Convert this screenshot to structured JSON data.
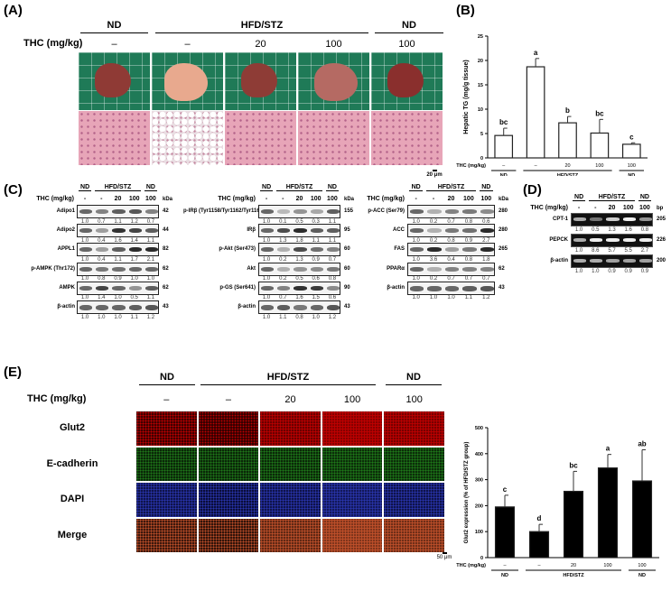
{
  "panels": {
    "a": "(A)",
    "b": "(B)",
    "c": "(C)",
    "d": "(D)",
    "e": "(E)"
  },
  "groups": [
    "ND",
    "HFD/STZ",
    "ND"
  ],
  "thc_label": "THC (mg/kg)",
  "doses": [
    "–",
    "–",
    "20",
    "100",
    "100"
  ],
  "doses_blot": [
    "-",
    "-",
    "20",
    "100",
    "100"
  ],
  "panel_a": {
    "scale_bar": "20 μm",
    "liver_colors": [
      "#8f3a35",
      "#e8a98e",
      "#8e3c36",
      "#b56a63",
      "#8a2f2d"
    ]
  },
  "panel_c": {
    "unit": "kDa",
    "blots": [
      {
        "rows": [
          {
            "label": "Adipo1",
            "kda": "42",
            "values": [
              "1.0",
              "0.7",
              "1.1",
              "1.2",
              "0.7"
            ]
          },
          {
            "label": "Adipo2",
            "kda": "44",
            "values": [
              "1.0",
              "0.4",
              "1.6",
              "1.4",
              "1.1"
            ]
          },
          {
            "label": "APPL1",
            "kda": "82",
            "values": [
              "1.0",
              "0.4",
              "1.1",
              "1.7",
              "2.1"
            ]
          },
          {
            "label": "p-AMPK (Thr172)",
            "kda": "62",
            "values": [
              "1.0",
              "0.8",
              "0.9",
              "1.0",
              "1.0"
            ]
          },
          {
            "label": "AMPK",
            "kda": "62",
            "values": [
              "1.0",
              "1.4",
              "1.0",
              "0.5",
              "1.1"
            ]
          },
          {
            "label": "β-actin",
            "kda": "43",
            "values": [
              "1.0",
              "1.0",
              "1.0",
              "1.1",
              "1.2"
            ]
          }
        ]
      },
      {
        "rows": [
          {
            "label": "p-IRβ (Tyr1158/Tyr1162/Tyr1163)",
            "kda": "155",
            "values": [
              "1.0",
              "0.1",
              "0.5",
              "0.3",
              "1.1"
            ]
          },
          {
            "label": "IRβ",
            "kda": "95",
            "values": [
              "1.0",
              "1.3",
              "1.8",
              "1.1",
              "1.1"
            ]
          },
          {
            "label": "p-Akt (Ser473)",
            "kda": "60",
            "values": [
              "1.0",
              "0.2",
              "1.3",
              "0.9",
              "0.7"
            ]
          },
          {
            "label": "Akt",
            "kda": "60",
            "values": [
              "1.0",
              "0.2",
              "0.5",
              "0.6",
              "0.8"
            ]
          },
          {
            "label": "p-GS (Ser641)",
            "kda": "90",
            "values": [
              "1.0",
              "0.7",
              "1.6",
              "1.5",
              "0.6"
            ]
          },
          {
            "label": "β-actin",
            "kda": "43",
            "values": [
              "1.0",
              "1.1",
              "0.8",
              "1.0",
              "1.2"
            ]
          }
        ]
      },
      {
        "rows": [
          {
            "label": "p-ACC (Ser79)",
            "kda": "280",
            "values": [
              "1.0",
              "0.2",
              "0.7",
              "0.8",
              "0.6"
            ]
          },
          {
            "label": "ACC",
            "kda": "280",
            "values": [
              "1.0",
              "0.2",
              "0.8",
              "0.9",
              "2.7"
            ]
          },
          {
            "label": "FAS",
            "kda": "265",
            "values": [
              "1.0",
              "3.6",
              "0.4",
              "0.8",
              "1.8"
            ]
          },
          {
            "label": "PPARα",
            "kda": "62",
            "values": [
              "1.0",
              "0.2",
              "0.7",
              "0.7",
              "0.7"
            ]
          },
          {
            "label": "β-actin",
            "kda": "43",
            "values": [
              "1.0",
              "1.0",
              "1.0",
              "1.1",
              "1.2"
            ]
          }
        ]
      }
    ]
  },
  "panel_d": {
    "unit": "bp",
    "rows": [
      {
        "label": "CPT-1",
        "bp": "205",
        "values": [
          "1.0",
          "0.5",
          "1.3",
          "1.6",
          "0.8"
        ]
      },
      {
        "label": "PEPCK",
        "bp": "226",
        "values": [
          "1.0",
          "8.6",
          "5.7",
          "5.5",
          "2.7"
        ]
      },
      {
        "label": "β-actin",
        "bp": "200",
        "values": [
          "1.0",
          "1.0",
          "0.9",
          "0.9",
          "0.9"
        ]
      }
    ]
  },
  "panel_e": {
    "rows": [
      "Glut2",
      "E-cadherin",
      "DAPI",
      "Merge"
    ],
    "scale_bar": "50 μm"
  },
  "chart_data": [
    {
      "type": "bar",
      "ylabel": "Hepatic TG (mg/g tissue)",
      "ylim": [
        0,
        25
      ],
      "yticks": [
        0,
        5,
        10,
        15,
        20,
        25
      ],
      "xlabel": "THC (mg/kg)",
      "categories": [
        "–",
        "–",
        "20",
        "100",
        "100"
      ],
      "group_labels": [
        "ND",
        "HFD/STZ",
        "ND"
      ],
      "values": [
        4.6,
        18.7,
        7.2,
        5.1,
        2.8
      ],
      "errors": [
        1.5,
        1.7,
        1.3,
        2.8,
        0.3
      ],
      "letters": [
        "bc",
        "a",
        "b",
        "bc",
        "c"
      ],
      "bar_color": "#ffffff"
    },
    {
      "type": "bar",
      "ylabel": "Glut2 expression (% of HFD/STZ group)",
      "ylim": [
        0,
        500
      ],
      "yticks": [
        0,
        100,
        200,
        300,
        400,
        500
      ],
      "xlabel": "THC (mg/kg)",
      "categories": [
        "–",
        "–",
        "20",
        "100",
        "100"
      ],
      "group_labels": [
        "ND",
        "HFD/STZ",
        "ND"
      ],
      "values": [
        195,
        100,
        255,
        345,
        295
      ],
      "errors": [
        45,
        28,
        77,
        52,
        120
      ],
      "letters": [
        "c",
        "d",
        "bc",
        "a",
        "ab"
      ],
      "bar_color": "#000000"
    }
  ]
}
